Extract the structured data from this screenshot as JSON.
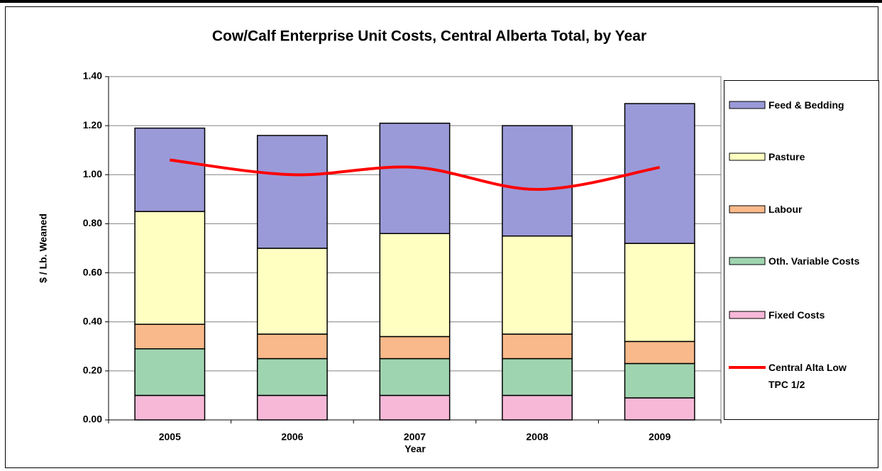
{
  "chart_data": {
    "type": "bar",
    "stacked": true,
    "title": "Cow/Calf Enterprise Unit Costs, Central Alberta Total, by Year",
    "x_label": "Year",
    "y_label": "$ / Lb. Weaned",
    "categories": [
      "2005",
      "2006",
      "2007",
      "2008",
      "2009"
    ],
    "series": [
      {
        "name": "Fixed Costs",
        "color": "#f7b8d8",
        "values": [
          0.1,
          0.1,
          0.1,
          0.1,
          0.09
        ]
      },
      {
        "name": "Oth. Variable Costs",
        "color": "#9fd4b0",
        "values": [
          0.19,
          0.15,
          0.15,
          0.15,
          0.14
        ]
      },
      {
        "name": "Labour",
        "color": "#f9b98a",
        "values": [
          0.1,
          0.1,
          0.09,
          0.1,
          0.09
        ]
      },
      {
        "name": "Pasture",
        "color": "#ffffc2",
        "values": [
          0.46,
          0.35,
          0.42,
          0.4,
          0.4
        ]
      },
      {
        "name": "Feed & Bedding",
        "color": "#9a9ad8",
        "values": [
          0.34,
          0.46,
          0.45,
          0.45,
          0.57
        ]
      },
      {
        "name": "Central Alta Low TPC 1/2",
        "type": "line",
        "color": "#ff0000",
        "values": [
          1.06,
          1.0,
          1.03,
          0.94,
          1.03
        ]
      }
    ],
    "ylim": [
      0,
      1.4
    ],
    "yticks": [
      {
        "value": 0,
        "label": "0.00"
      },
      {
        "value": 0.2,
        "label": "0.20"
      },
      {
        "value": 0.4,
        "label": "0.40"
      },
      {
        "value": 0.6,
        "label": "0.60"
      },
      {
        "value": 0.8,
        "label": "0.80"
      },
      {
        "value": 1.0,
        "label": "1.00"
      },
      {
        "value": 1.2,
        "label": "1.20"
      },
      {
        "value": 1.4,
        "label": "1.40"
      }
    ],
    "grid": true,
    "legend": "right"
  }
}
